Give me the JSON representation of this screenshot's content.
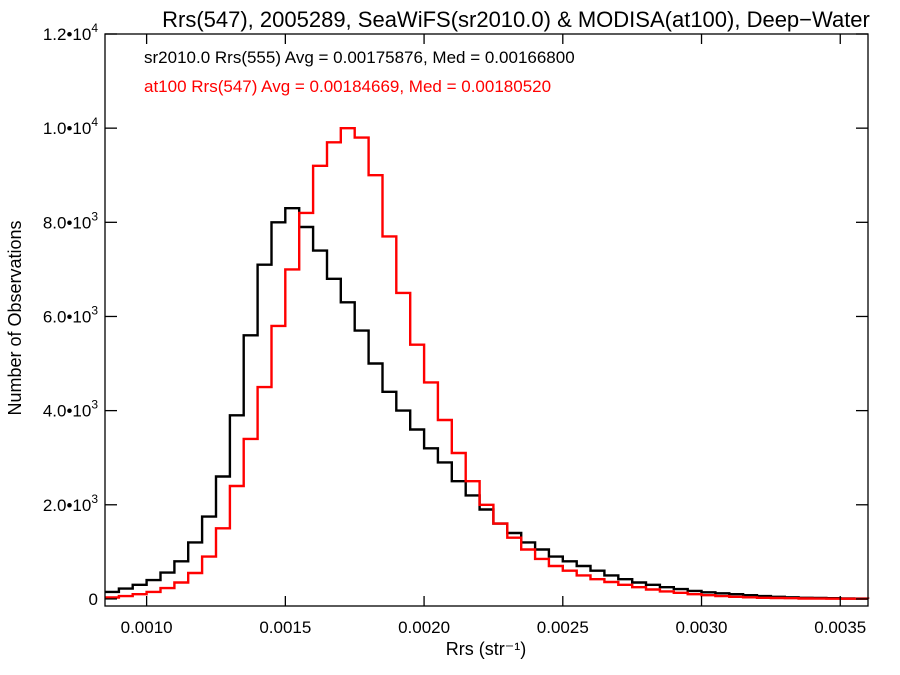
{
  "colors": {
    "background": "#ffffff",
    "axes": "#000000",
    "series_sr2010": "#000000",
    "series_at100": "#ff0000"
  },
  "chart_data": {
    "type": "line",
    "subtype": "step-histogram",
    "title": "Rrs(547), 2005289, SeaWiFS(sr2010.0) & MODISA(at100), Deep−Water",
    "xlabel": "Rrs (str⁻¹)",
    "ylabel": "Number of Observations",
    "xlim": [
      0.00085,
      0.0036
    ],
    "ylim": [
      -150,
      12000
    ],
    "grid": false,
    "xticks": [
      {
        "value": 0.001,
        "label": "0.0010"
      },
      {
        "value": 0.0015,
        "label": "0.0015"
      },
      {
        "value": 0.002,
        "label": "0.0020"
      },
      {
        "value": 0.0025,
        "label": "0.0025"
      },
      {
        "value": 0.003,
        "label": "0.0030"
      },
      {
        "value": 0.0035,
        "label": "0.0035"
      }
    ],
    "yticks": [
      {
        "value": 0,
        "mantissa": "0",
        "exp": ""
      },
      {
        "value": 2000,
        "mantissa": "2.0•10",
        "exp": "3"
      },
      {
        "value": 4000,
        "mantissa": "4.0•10",
        "exp": "3"
      },
      {
        "value": 6000,
        "mantissa": "6.0•10",
        "exp": "3"
      },
      {
        "value": 8000,
        "mantissa": "8.0•10",
        "exp": "3"
      },
      {
        "value": 10000,
        "mantissa": "1.0•10",
        "exp": "4"
      },
      {
        "value": 12000,
        "mantissa": "1.2•10",
        "exp": "4"
      }
    ],
    "annotations": [
      {
        "text": "sr2010.0 Rrs(555) Avg = 0.00175876, Med = 0.00166800",
        "color": "#000000"
      },
      {
        "text": "at100 Rrs(547) Avg = 0.00184669, Med = 0.00180520",
        "color": "#ff0000"
      }
    ],
    "series": [
      {
        "color": "#000000",
        "x": [
          0.00085,
          0.0009,
          0.00095,
          0.001,
          0.00105,
          0.0011,
          0.00115,
          0.0012,
          0.00125,
          0.0013,
          0.00135,
          0.0014,
          0.00145,
          0.0015,
          0.00155,
          0.0016,
          0.00165,
          0.0017,
          0.00175,
          0.0018,
          0.00185,
          0.0019,
          0.00195,
          0.002,
          0.00205,
          0.0021,
          0.00215,
          0.0022,
          0.00225,
          0.0023,
          0.00235,
          0.0024,
          0.00245,
          0.0025,
          0.00255,
          0.0026,
          0.00265,
          0.0027,
          0.00275,
          0.0028,
          0.00285,
          0.0029,
          0.00295,
          0.003,
          0.00305,
          0.0031,
          0.00315,
          0.0032,
          0.00325,
          0.0033,
          0.00335,
          0.0034,
          0.00345,
          0.0035,
          0.00355,
          0.0036
        ],
        "values": [
          150,
          220,
          300,
          400,
          560,
          800,
          1200,
          1750,
          2600,
          3900,
          5600,
          7100,
          8000,
          8300,
          7900,
          7400,
          6800,
          6300,
          5700,
          5000,
          4400,
          4000,
          3600,
          3200,
          2900,
          2500,
          2200,
          1900,
          1600,
          1400,
          1200,
          1050,
          900,
          800,
          700,
          600,
          500,
          420,
          350,
          300,
          250,
          210,
          170,
          140,
          120,
          100,
          80,
          60,
          45,
          35,
          25,
          20,
          15,
          10,
          8,
          5
        ]
      },
      {
        "color": "#ff0000",
        "x": [
          0.00085,
          0.0009,
          0.00095,
          0.001,
          0.00105,
          0.0011,
          0.00115,
          0.0012,
          0.00125,
          0.0013,
          0.00135,
          0.0014,
          0.00145,
          0.0015,
          0.00155,
          0.0016,
          0.00165,
          0.0017,
          0.00175,
          0.0018,
          0.00185,
          0.0019,
          0.00195,
          0.002,
          0.00205,
          0.0021,
          0.00215,
          0.0022,
          0.00225,
          0.0023,
          0.00235,
          0.0024,
          0.00245,
          0.0025,
          0.00255,
          0.0026,
          0.00265,
          0.0027,
          0.00275,
          0.0028,
          0.00285,
          0.0029,
          0.00295,
          0.003,
          0.00305,
          0.0031,
          0.00315,
          0.0032,
          0.00325,
          0.0033,
          0.00335,
          0.0034,
          0.00345,
          0.0035,
          0.00355,
          0.0036
        ],
        "values": [
          30,
          60,
          100,
          150,
          230,
          350,
          550,
          900,
          1500,
          2400,
          3400,
          4500,
          5800,
          7000,
          8200,
          9200,
          9700,
          10000,
          9800,
          9000,
          7700,
          6500,
          5400,
          4600,
          3800,
          3100,
          2500,
          2000,
          1600,
          1300,
          1050,
          850,
          700,
          600,
          500,
          420,
          360,
          300,
          250,
          200,
          160,
          130,
          100,
          80,
          60,
          45,
          35,
          25,
          20,
          15,
          10,
          8,
          6,
          5,
          4,
          3
        ]
      }
    ]
  }
}
